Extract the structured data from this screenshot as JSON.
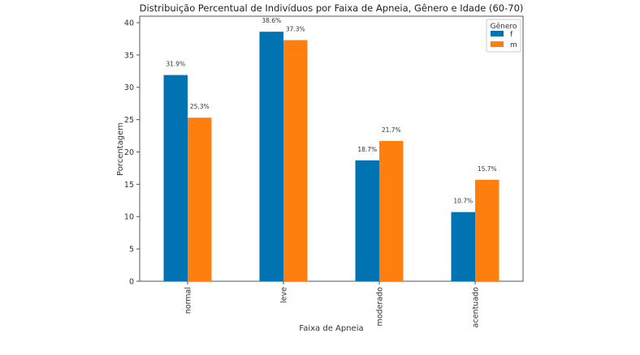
{
  "chart_data": {
    "type": "bar",
    "title": "Distribuição Percentual de Indivíduos por Faixa de Apneia, Gênero e Idade (60-70)",
    "xlabel": "Faixa de Apneia",
    "ylabel": "Porcentagem",
    "categories": [
      "normal",
      "leve",
      "moderado",
      "acentuado"
    ],
    "series": [
      {
        "name": "f",
        "color": "#0173b2",
        "values": [
          31.9,
          38.6,
          18.7,
          10.7
        ],
        "labels": [
          "31.9%",
          "38.6%",
          "18.7%",
          "10.7%"
        ]
      },
      {
        "name": "m",
        "color": "#ff7f0e",
        "values": [
          25.3,
          37.3,
          21.7,
          15.7
        ],
        "labels": [
          "25.3%",
          "37.3%",
          "21.7%",
          "15.7%"
        ]
      }
    ],
    "ylim": [
      0,
      41
    ],
    "yticks": [
      0,
      5,
      10,
      15,
      20,
      25,
      30,
      35,
      40
    ],
    "legend": {
      "title": "Gênero",
      "placement": "top-right"
    },
    "grid": false
  }
}
